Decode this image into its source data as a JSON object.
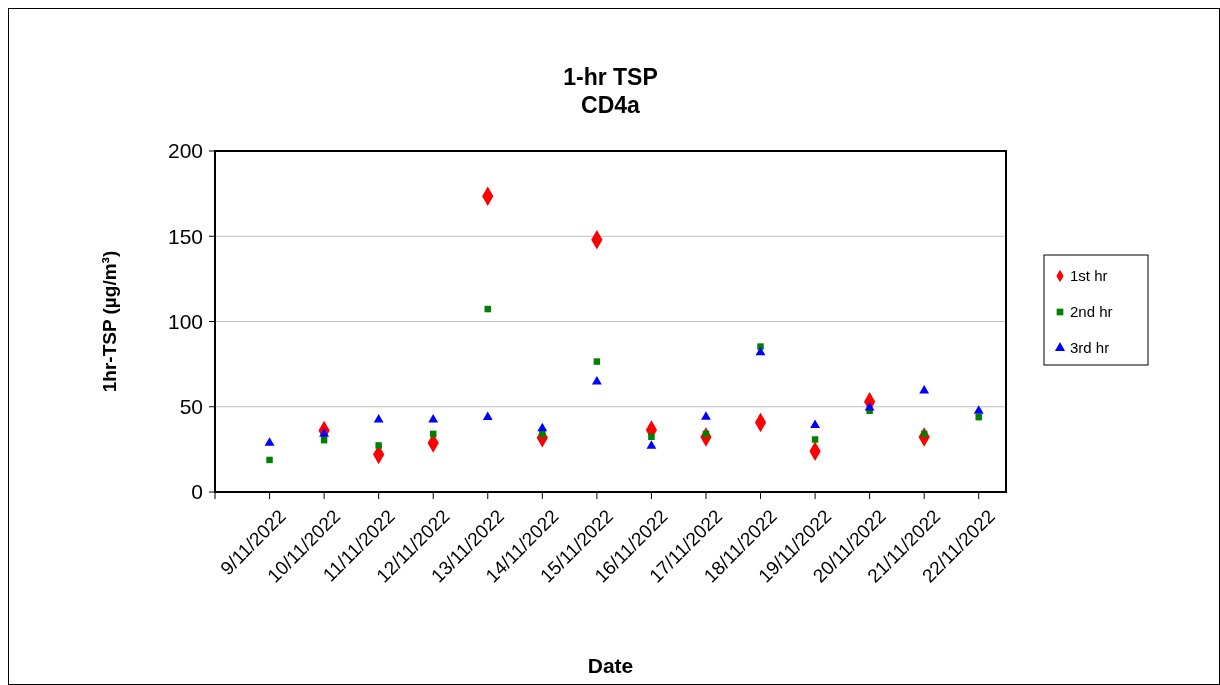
{
  "chart_data": {
    "type": "scatter",
    "title": "1-hr TSP\nCD4a",
    "xlabel": "Date",
    "ylabel": "1hr-TSP (µg/m³)",
    "categories": [
      "9/11/2022",
      "10/11/2022",
      "11/11/2022",
      "12/11/2022",
      "13/11/2022",
      "14/11/2022",
      "15/11/2022",
      "16/11/2022",
      "17/11/2022",
      "18/11/2022",
      "19/11/2022",
      "20/11/2022",
      "21/11/2022",
      "22/11/2022"
    ],
    "series": [
      {
        "name": "1st hr",
        "color": "#ff0000",
        "marker": "diamond",
        "values": [
          null,
          36,
          22,
          28.8,
          173.5,
          31.8,
          148,
          36.3,
          32.2,
          40.8,
          23.9,
          52.9,
          32.2,
          null
        ]
      },
      {
        "name": "2nd hr",
        "color": "#008000",
        "marker": "square",
        "values": [
          18.8,
          30.4,
          27.3,
          34.1,
          107.3,
          33.9,
          76.5,
          32.4,
          34.1,
          85.3,
          30.8,
          47.6,
          34.1,
          43.9
        ]
      },
      {
        "name": "3rd hr",
        "color": "#0000ff",
        "marker": "triangle",
        "values": [
          28.8,
          34,
          42.4,
          42.4,
          43.9,
          37.3,
          64.7,
          27,
          44,
          81.8,
          39.2,
          49.4,
          59.4,
          47.6
        ]
      }
    ],
    "ylim": [
      0,
      200
    ],
    "yticks": [
      0,
      50,
      100,
      150,
      200
    ],
    "grid": "y",
    "legend": "right"
  }
}
